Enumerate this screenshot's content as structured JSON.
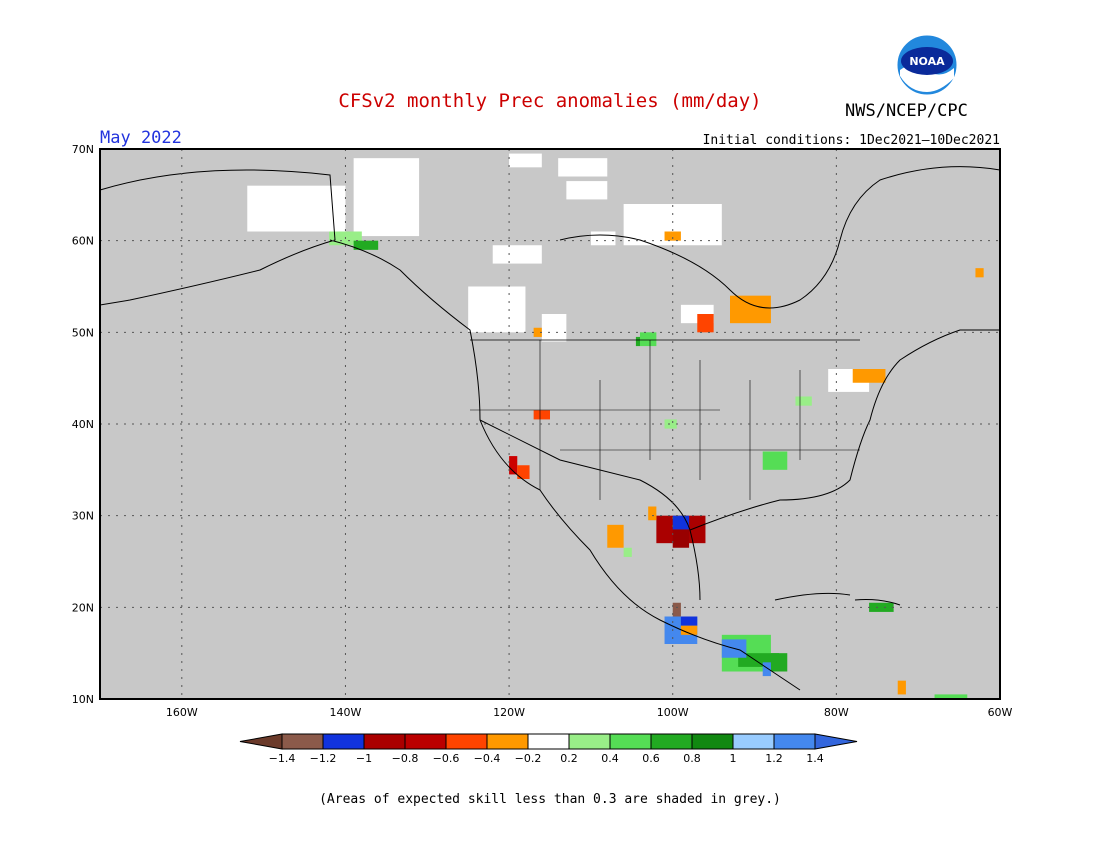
{
  "header": {
    "title": "CFSv2 monthly Prec anomalies (mm/day)",
    "org": "NWS/NCEP/CPC",
    "valid_month": "May 2022",
    "initial_conditions": "Initial conditions: 1Dec2021—10Dec2021",
    "logo_text": "NOAA"
  },
  "map": {
    "background_color": "#c8c8c8",
    "lat_range": [
      10,
      70
    ],
    "lon_range": [
      -170,
      -60
    ],
    "lat_labels": [
      "70N",
      "60N",
      "50N",
      "40N",
      "30N",
      "20N",
      "10N"
    ],
    "lon_labels": [
      "160W",
      "140W",
      "120W",
      "100W",
      "80W",
      "60W"
    ],
    "anomaly_patches": [
      {
        "region": "Alaska interior",
        "value": 0.0,
        "color": "#ffffff",
        "lon": [
          -152,
          -140
        ],
        "lat": [
          61,
          66
        ]
      },
      {
        "region": "Yukon",
        "value": 0.0,
        "color": "#ffffff",
        "lon": [
          -139,
          -131
        ],
        "lat": [
          60.5,
          69
        ]
      },
      {
        "region": "Beaufort coast",
        "value": 0.0,
        "color": "#ffffff",
        "lon": [
          -120,
          -116
        ],
        "lat": [
          68,
          69.5
        ]
      },
      {
        "region": "NW Territories",
        "value": 0.0,
        "color": "#ffffff",
        "lon": [
          -114,
          -108
        ],
        "lat": [
          67,
          69
        ]
      },
      {
        "region": "Nunavut",
        "value": 0.0,
        "color": "#ffffff",
        "lon": [
          -113,
          -108
        ],
        "lat": [
          64.5,
          66.5
        ]
      },
      {
        "region": "Keewatin",
        "value": 0.0,
        "color": "#ffffff",
        "lon": [
          -106,
          -94
        ],
        "lat": [
          59.5,
          64
        ]
      },
      {
        "region": "Athabasca",
        "value": 0.0,
        "color": "#ffffff",
        "lon": [
          -122,
          -116
        ],
        "lat": [
          57.5,
          59.5
        ]
      },
      {
        "region": "Lake Athabasca",
        "value": 0.0,
        "color": "#ffffff",
        "lon": [
          -110,
          -107
        ],
        "lat": [
          59.5,
          61
        ]
      },
      {
        "region": "Alberta BC",
        "value": 0.0,
        "color": "#ffffff",
        "lon": [
          -125,
          -118
        ],
        "lat": [
          50,
          55
        ]
      },
      {
        "region": "Alberta south",
        "value": 0.0,
        "color": "#ffffff",
        "lon": [
          -116,
          -113
        ],
        "lat": [
          49,
          52
        ]
      },
      {
        "region": "Ontario north",
        "value": 0.0,
        "color": "#ffffff",
        "lon": [
          -99,
          -95
        ],
        "lat": [
          51,
          53
        ]
      },
      {
        "region": "Quebec",
        "value": 0.0,
        "color": "#ffffff",
        "lon": [
          -81,
          -76
        ],
        "lat": [
          43.5,
          46
        ]
      },
      {
        "region": "Hudson Bay W",
        "value": -0.3,
        "color": "#ff9900",
        "lon": [
          -101,
          -99
        ],
        "lat": [
          60,
          61
        ]
      },
      {
        "region": "Ontario NW",
        "value": -0.3,
        "color": "#ff9900",
        "lon": [
          -93,
          -88
        ],
        "lat": [
          51,
          54
        ]
      },
      {
        "region": "Ontario NW 2",
        "value": -0.5,
        "color": "#ff4400",
        "lon": [
          -97,
          -95
        ],
        "lat": [
          50,
          52
        ]
      },
      {
        "region": "Quebec E",
        "value": -0.3,
        "color": "#ff9900",
        "lon": [
          -78,
          -74
        ],
        "lat": [
          44.5,
          46
        ]
      },
      {
        "region": "Labrador",
        "value": -0.3,
        "color": "#ff9900",
        "lon": [
          -63,
          -62
        ],
        "lat": [
          56,
          57
        ]
      },
      {
        "region": "BC south",
        "value": -0.3,
        "color": "#ff9900",
        "lon": [
          -117,
          -116
        ],
        "lat": [
          49.5,
          50.5
        ]
      },
      {
        "region": "Alaska Panhandle",
        "value": 0.3,
        "color": "#99ee88",
        "lon": [
          -142,
          -138
        ],
        "lat": [
          59.5,
          61
        ]
      },
      {
        "region": "Alaska Panhandle 2",
        "value": 0.7,
        "color": "#22aa22",
        "lon": [
          -139,
          -136
        ],
        "lat": [
          59,
          60
        ]
      },
      {
        "region": "Montana N",
        "value": 0.5,
        "color": "#55dd55",
        "lon": [
          -104,
          -102
        ],
        "lat": [
          48.5,
          50
        ]
      },
      {
        "region": "Montana N dark",
        "value": 0.7,
        "color": "#22aa22",
        "lon": [
          -104.5,
          -104
        ],
        "lat": [
          48.5,
          49.5
        ]
      },
      {
        "region": "Nevada",
        "value": -0.5,
        "color": "#ff4400",
        "lon": [
          -117,
          -115
        ],
        "lat": [
          40.5,
          41.5
        ]
      },
      {
        "region": "Michigan",
        "value": 0.3,
        "color": "#99ee88",
        "lon": [
          -85,
          -83
        ],
        "lat": [
          42,
          43
        ]
      },
      {
        "region": "Kansas",
        "value": 0.3,
        "color": "#99ee88",
        "lon": [
          -101,
          -99.5
        ],
        "lat": [
          39.5,
          40.5
        ]
      },
      {
        "region": "Tennessee",
        "value": 0.5,
        "color": "#55dd55",
        "lon": [
          -89,
          -86
        ],
        "lat": [
          35,
          37
        ]
      },
      {
        "region": "S California",
        "value": -0.7,
        "color": "#cc0000",
        "lon": [
          -120,
          -119
        ],
        "lat": [
          34.5,
          36.5
        ]
      },
      {
        "region": "S California 2",
        "value": -0.5,
        "color": "#ff4400",
        "lon": [
          -119,
          -117.5
        ],
        "lat": [
          34,
          35.5
        ]
      },
      {
        "region": "S Texas",
        "value": -0.9,
        "color": "#aa0000",
        "lon": [
          -102,
          -96
        ],
        "lat": [
          27,
          30
        ]
      },
      {
        "region": "S Texas core",
        "value": -1.1,
        "color": "#990000",
        "lon": [
          -100,
          -98
        ],
        "lat": [
          26.5,
          28.5
        ]
      },
      {
        "region": "S Texas blue",
        "value": -1.1,
        "color": "#1133dd",
        "lon": [
          -100,
          -98
        ],
        "lat": [
          28.5,
          30
        ]
      },
      {
        "region": "Chihuahua",
        "value": -0.3,
        "color": "#ff9900",
        "lon": [
          -108,
          -106
        ],
        "lat": [
          26.5,
          29
        ]
      },
      {
        "region": "Coahuila",
        "value": -0.3,
        "color": "#ff9900",
        "lon": [
          -103,
          -102
        ],
        "lat": [
          29.5,
          31
        ]
      },
      {
        "region": "Sinaloa",
        "value": 0.3,
        "color": "#99ee88",
        "lon": [
          -106,
          -105
        ],
        "lat": [
          25.5,
          26.5
        ]
      },
      {
        "region": "S Mexico",
        "value": 1.3,
        "color": "#4488ee",
        "lon": [
          -101,
          -97
        ],
        "lat": [
          16,
          19
        ]
      },
      {
        "region": "S Mexico blue",
        "value": -1.1,
        "color": "#1133dd",
        "lon": [
          -99,
          -97
        ],
        "lat": [
          18,
          19
        ]
      },
      {
        "region": "S Mexico brown",
        "value": -1.3,
        "color": "#8b5a4a",
        "lon": [
          -100,
          -99
        ],
        "lat": [
          19,
          20.5
        ]
      },
      {
        "region": "S Mexico orange",
        "value": -0.3,
        "color": "#ff9900",
        "lon": [
          -99,
          -97
        ],
        "lat": [
          17,
          18
        ]
      },
      {
        "region": "Guatemala",
        "value": 0.5,
        "color": "#55dd55",
        "lon": [
          -94,
          -88
        ],
        "lat": [
          13,
          17
        ]
      },
      {
        "region": "Guatemala dark",
        "value": 0.7,
        "color": "#22aa22",
        "lon": [
          -92,
          -87
        ],
        "lat": [
          13.5,
          15
        ]
      },
      {
        "region": "Guatemala blue",
        "value": 1.3,
        "color": "#4488ee",
        "lon": [
          -94,
          -91
        ],
        "lat": [
          14.5,
          16.5
        ]
      },
      {
        "region": "Honduras",
        "value": 0.7,
        "color": "#22aa22",
        "lon": [
          -88,
          -86
        ],
        "lat": [
          13,
          15
        ]
      },
      {
        "region": "Honduras blue",
        "value": 1.3,
        "color": "#4488ee",
        "lon": [
          -89,
          -88
        ],
        "lat": [
          12.5,
          14
        ]
      },
      {
        "region": "Hispaniola",
        "value": 0.7,
        "color": "#22aa22",
        "lon": [
          -76,
          -73
        ],
        "lat": [
          19.5,
          20.5
        ]
      },
      {
        "region": "Venezuela",
        "value": -0.3,
        "color": "#ff9900",
        "lon": [
          -72.5,
          -71.5
        ],
        "lat": [
          10.5,
          12
        ]
      },
      {
        "region": "Caribbean S",
        "value": 0.5,
        "color": "#55dd55",
        "lon": [
          -68,
          -64
        ],
        "lat": [
          10,
          10.5
        ]
      }
    ]
  },
  "colorbar": {
    "colors": [
      "#8b5a4a",
      "#1133dd",
      "#aa0000",
      "#bb0000",
      "#ff4400",
      "#ff9900",
      "#ffffff",
      "#99ee88",
      "#55dd55",
      "#22aa22",
      "#118811",
      "#99ccff",
      "#4488ee"
    ],
    "left_arrow_color": "#6b3a2a",
    "right_arrow_color": "#3366dd",
    "labels": [
      "−1.4",
      "−1.2",
      "−1",
      "−0.8",
      "−0.6",
      "−0.4",
      "−0.2",
      "0.2",
      "0.4",
      "0.6",
      "0.8",
      "1",
      "1.2",
      "1.4"
    ]
  },
  "footnote": "(Areas of expected skill less than 0.3 are shaded in grey.)"
}
